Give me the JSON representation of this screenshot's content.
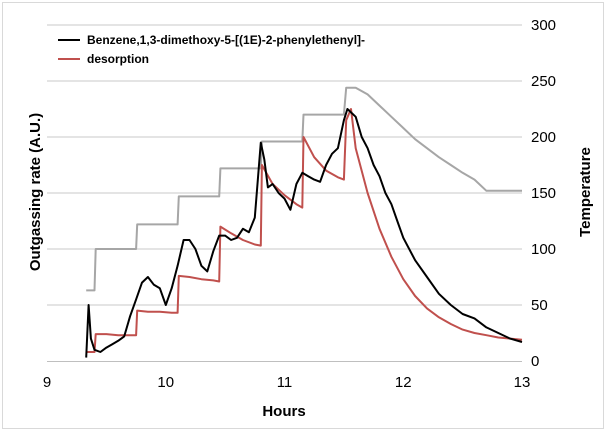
{
  "chart_data": {
    "type": "line",
    "xlabel": "Hours",
    "ylabel_left": "Outgassing rate (A.U.)",
    "ylabel_right": "Temperature",
    "xlim": [
      9,
      13
    ],
    "x_ticks": [
      "9",
      "10",
      "11",
      "12",
      "13"
    ],
    "ylim_right": [
      0,
      300
    ],
    "right_ticks": [
      "0",
      "50",
      "100",
      "150",
      "200",
      "250",
      "300"
    ],
    "grid": "horizontal",
    "legend": "top-left",
    "colors": {
      "series1": "#000000",
      "series2": "#c0504d",
      "temperature": "#a6a6a6"
    },
    "series": [
      {
        "name": "Benzene,1,3-dimethoxy-5-[(1E)-2-phenylethenyl]-",
        "color": "#000000",
        "x": [
          9.33,
          9.35,
          9.37,
          9.4,
          9.45,
          9.5,
          9.55,
          9.6,
          9.65,
          9.7,
          9.75,
          9.8,
          9.85,
          9.9,
          9.95,
          10.0,
          10.05,
          10.1,
          10.15,
          10.2,
          10.25,
          10.3,
          10.35,
          10.4,
          10.45,
          10.5,
          10.55,
          10.6,
          10.65,
          10.7,
          10.75,
          10.8,
          10.83,
          10.86,
          10.9,
          10.95,
          11.0,
          11.05,
          11.1,
          11.15,
          11.2,
          11.25,
          11.3,
          11.35,
          11.4,
          11.45,
          11.5,
          11.53,
          11.56,
          11.6,
          11.65,
          11.7,
          11.75,
          11.8,
          11.85,
          11.9,
          11.95,
          12.0,
          12.1,
          12.2,
          12.3,
          12.4,
          12.5,
          12.6,
          12.7,
          12.8,
          12.9,
          13.0
        ],
        "y": [
          3,
          50,
          20,
          10,
          8,
          12,
          15,
          18,
          22,
          40,
          55,
          70,
          75,
          68,
          65,
          50,
          65,
          85,
          108,
          108,
          100,
          85,
          80,
          98,
          112,
          112,
          108,
          110,
          118,
          115,
          128,
          195,
          180,
          155,
          158,
          150,
          145,
          135,
          158,
          168,
          165,
          162,
          160,
          175,
          185,
          190,
          215,
          225,
          222,
          218,
          200,
          190,
          175,
          165,
          150,
          140,
          125,
          110,
          90,
          75,
          60,
          50,
          42,
          38,
          30,
          25,
          20,
          17
        ]
      },
      {
        "name": "desorption",
        "color": "#c0504d",
        "x": [
          9.33,
          9.4,
          9.41,
          9.5,
          9.6,
          9.7,
          9.75,
          9.76,
          9.85,
          9.95,
          10.05,
          10.1,
          10.11,
          10.2,
          10.3,
          10.4,
          10.45,
          10.46,
          10.55,
          10.65,
          10.75,
          10.8,
          10.81,
          10.9,
          11.0,
          11.1,
          11.15,
          11.16,
          11.25,
          11.35,
          11.45,
          11.5,
          11.52,
          11.56,
          11.6,
          11.7,
          11.8,
          11.9,
          12.0,
          12.1,
          12.2,
          12.3,
          12.4,
          12.5,
          12.6,
          12.7,
          12.8,
          12.9,
          13.0
        ],
        "y": [
          8,
          8,
          24,
          24,
          23,
          23,
          23,
          45,
          44,
          44,
          43,
          43,
          76,
          75,
          73,
          72,
          71,
          120,
          114,
          108,
          104,
          103,
          175,
          158,
          148,
          140,
          137,
          200,
          182,
          170,
          164,
          162,
          215,
          225,
          190,
          150,
          118,
          93,
          73,
          58,
          47,
          39,
          33,
          28,
          25,
          23,
          21,
          20,
          19
        ]
      },
      {
        "name": "Temperature",
        "axis": "right",
        "color": "#a6a6a6",
        "x": [
          9.33,
          9.4,
          9.41,
          9.75,
          9.76,
          10.1,
          10.11,
          10.45,
          10.46,
          10.8,
          10.81,
          11.15,
          11.16,
          11.5,
          11.52,
          11.6,
          11.7,
          11.8,
          11.9,
          12.0,
          12.1,
          12.2,
          12.3,
          12.4,
          12.5,
          12.6,
          12.7,
          12.8,
          12.9,
          13.0
        ],
        "y": [
          63,
          63,
          100,
          100,
          122,
          122,
          147,
          147,
          172,
          172,
          196,
          196,
          220,
          220,
          244,
          244,
          238,
          228,
          218,
          208,
          198,
          190,
          182,
          175,
          168,
          162,
          152,
          152,
          152,
          152
        ]
      }
    ]
  }
}
